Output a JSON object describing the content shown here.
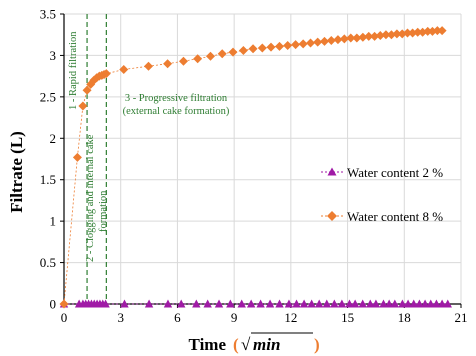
{
  "chart_data": {
    "type": "scatter",
    "title": "",
    "xlabel": "Time",
    "xlabel_unit": "√min",
    "ylabel": "Filtrate (L)",
    "xlim": [
      0,
      21
    ],
    "ylim": [
      0,
      3.5
    ],
    "x_ticks": [
      "0",
      "3",
      "6",
      "9",
      "12",
      "15",
      "18",
      "21"
    ],
    "y_ticks": [
      "0",
      "0.5",
      "1",
      "1.5",
      "2",
      "2.5",
      "3",
      "3.5"
    ],
    "grid": true,
    "legend_position": "right",
    "colors": {
      "water_8": "#ed7d31",
      "water_2": "#a01aa6",
      "annotation": "#2e7d32"
    },
    "series": [
      {
        "name": "Water content 2 %",
        "marker": "triangle",
        "x": [
          0,
          0.8,
          1.0,
          1.15,
          1.3,
          1.45,
          1.6,
          1.75,
          1.9,
          2.05,
          2.2,
          3.2,
          4.5,
          5.5,
          6.2,
          7.0,
          7.6,
          8.2,
          8.8,
          9.4,
          9.9,
          10.4,
          10.9,
          11.4,
          11.9,
          12.3,
          12.7,
          13.1,
          13.5,
          13.9,
          14.3,
          14.7,
          15.1,
          15.4,
          15.8,
          16.2,
          16.5,
          16.9,
          17.2,
          17.5,
          17.9,
          18.2,
          18.5,
          18.8,
          19.1,
          19.4,
          19.7,
          20.0,
          20.3
        ],
        "y": [
          0,
          0,
          0,
          0,
          0,
          0,
          0,
          0,
          0,
          0,
          0,
          0,
          0,
          0,
          0,
          0,
          0,
          0,
          0,
          0,
          0,
          0,
          0,
          0,
          0,
          0,
          0,
          0,
          0,
          0,
          0,
          0,
          0,
          0,
          0,
          0,
          0,
          0,
          0,
          0,
          0,
          0,
          0,
          0,
          0,
          0,
          0,
          0,
          0
        ]
      },
      {
        "name": "Water content 8 %",
        "marker": "diamond",
        "x": [
          0,
          0.71,
          1.0,
          1.22,
          1.41,
          1.58,
          1.73,
          1.87,
          2.0,
          2.12,
          2.24,
          3.16,
          4.47,
          5.48,
          6.32,
          7.07,
          7.75,
          8.37,
          8.94,
          9.49,
          10.0,
          10.49,
          10.95,
          11.4,
          11.83,
          12.25,
          12.65,
          13.04,
          13.42,
          13.78,
          14.14,
          14.49,
          14.83,
          15.17,
          15.49,
          15.81,
          16.12,
          16.43,
          16.73,
          17.03,
          17.32,
          17.61,
          17.89,
          18.17,
          18.44,
          18.71,
          18.97,
          19.24,
          19.49,
          19.75,
          20.0
        ],
        "y": [
          0,
          1.77,
          2.39,
          2.58,
          2.65,
          2.7,
          2.73,
          2.75,
          2.76,
          2.77,
          2.78,
          2.83,
          2.87,
          2.9,
          2.93,
          2.96,
          2.99,
          3.02,
          3.04,
          3.06,
          3.08,
          3.09,
          3.1,
          3.11,
          3.12,
          3.13,
          3.14,
          3.15,
          3.16,
          3.17,
          3.18,
          3.19,
          3.2,
          3.21,
          3.21,
          3.22,
          3.23,
          3.23,
          3.24,
          3.25,
          3.25,
          3.26,
          3.26,
          3.27,
          3.27,
          3.28,
          3.28,
          3.29,
          3.29,
          3.3,
          3.3
        ]
      }
    ],
    "phase_lines_x": [
      1.22,
      2.24
    ],
    "annotations": [
      "1 - Rapid filtration",
      "2 - Clogging and internal cake",
      "formation",
      "3 - Progressive filtration",
      "(external cake formation)"
    ]
  }
}
